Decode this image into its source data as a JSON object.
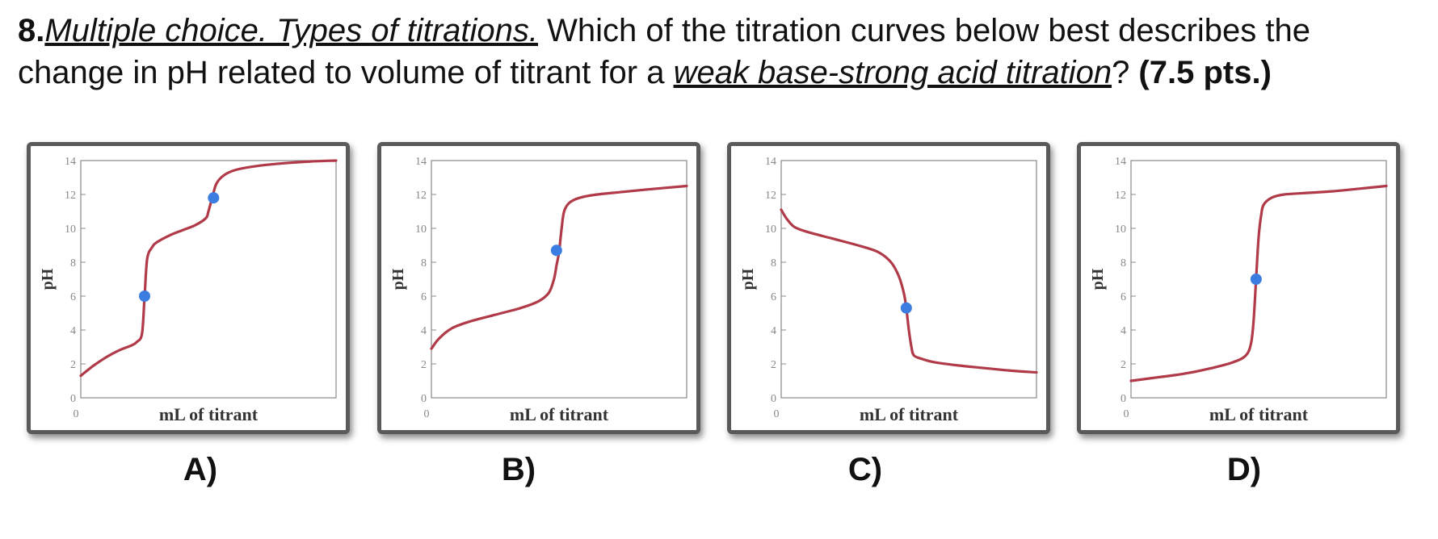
{
  "question": {
    "number": "8.",
    "topic": "Multiple choice. Types of titrations.",
    "text_before": " Which of the titration curves below best describes the change in pH related to volume of titrant for a ",
    "emphasis": "weak base-strong acid titration",
    "text_after": "? ",
    "points": "(7.5 pts.)"
  },
  "choices": [
    "A)",
    "B)",
    "C)",
    "D)"
  ],
  "colors": {
    "curve": "#b03a48",
    "marker": "#3b7de0",
    "frame": "#5a5a5a"
  },
  "chart_data": [
    {
      "type": "line",
      "title": "",
      "xlabel": "mL of titrant",
      "ylabel": "pH",
      "ylim": [
        0,
        14
      ],
      "xlim": [
        0,
        100
      ],
      "x_ticks": [
        "0"
      ],
      "y_ticks": [
        0,
        2,
        4,
        6,
        8,
        10,
        12,
        14
      ],
      "series": [
        {
          "x": [
            0,
            5,
            10,
            15,
            20,
            22,
            24,
            25,
            26,
            28,
            30,
            35,
            40,
            45,
            49,
            50,
            52,
            53,
            55,
            58,
            62,
            70,
            80,
            90,
            100
          ],
          "y": [
            1.3,
            1.9,
            2.4,
            2.8,
            3.1,
            3.3,
            3.8,
            6.0,
            8.2,
            8.9,
            9.2,
            9.6,
            9.9,
            10.2,
            10.6,
            11.0,
            12.1,
            12.6,
            13.0,
            13.3,
            13.5,
            13.7,
            13.85,
            13.95,
            14.0
          ]
        }
      ],
      "markers": [
        {
          "x": 25,
          "y": 6.0
        },
        {
          "x": 52,
          "y": 11.8
        }
      ]
    },
    {
      "type": "line",
      "title": "",
      "xlabel": "mL of titrant",
      "ylabel": "pH",
      "ylim": [
        0,
        14
      ],
      "xlim": [
        0,
        100
      ],
      "x_ticks": [
        "0"
      ],
      "y_ticks": [
        0,
        2,
        4,
        6,
        8,
        10,
        12,
        14
      ],
      "series": [
        {
          "x": [
            0,
            3,
            8,
            15,
            25,
            35,
            42,
            46,
            48,
            49,
            50,
            51,
            52,
            54,
            58,
            65,
            75,
            85,
            100
          ],
          "y": [
            2.9,
            3.5,
            4.1,
            4.5,
            4.9,
            5.3,
            5.7,
            6.2,
            7.0,
            7.8,
            8.6,
            10.0,
            11.0,
            11.5,
            11.8,
            12.0,
            12.15,
            12.3,
            12.5
          ]
        }
      ],
      "markers": [
        {
          "x": 49,
          "y": 8.7
        }
      ]
    },
    {
      "type": "line",
      "title": "",
      "xlabel": "mL of titrant",
      "ylabel": "pH",
      "ylim": [
        0,
        14
      ],
      "xlim": [
        0,
        100
      ],
      "x_ticks": [
        "0"
      ],
      "y_ticks": [
        0,
        2,
        4,
        6,
        8,
        10,
        12,
        14
      ],
      "series": [
        {
          "x": [
            0,
            2,
            5,
            10,
            20,
            30,
            38,
            43,
            46,
            48,
            49,
            50,
            51,
            52,
            55,
            60,
            70,
            80,
            90,
            100
          ],
          "y": [
            11.1,
            10.6,
            10.1,
            9.8,
            9.4,
            9.0,
            8.6,
            8.0,
            7.2,
            6.2,
            5.3,
            4.0,
            3.0,
            2.5,
            2.3,
            2.1,
            1.9,
            1.75,
            1.6,
            1.5
          ]
        }
      ],
      "markers": [
        {
          "x": 49,
          "y": 5.3
        }
      ]
    },
    {
      "type": "line",
      "title": "",
      "xlabel": "mL of titrant",
      "ylabel": "pH",
      "ylim": [
        0,
        14
      ],
      "xlim": [
        0,
        100
      ],
      "x_ticks": [
        "0"
      ],
      "y_ticks": [
        0,
        2,
        4,
        6,
        8,
        10,
        12,
        14
      ],
      "series": [
        {
          "x": [
            0,
            10,
            20,
            30,
            40,
            45,
            47,
            48,
            49,
            50,
            51,
            52,
            55,
            60,
            70,
            80,
            90,
            100
          ],
          "y": [
            1.0,
            1.2,
            1.4,
            1.7,
            2.1,
            2.5,
            3.2,
            4.5,
            7.0,
            9.5,
            10.8,
            11.4,
            11.8,
            12.0,
            12.1,
            12.2,
            12.35,
            12.5
          ]
        }
      ],
      "markers": [
        {
          "x": 49,
          "y": 7.0
        }
      ]
    }
  ]
}
